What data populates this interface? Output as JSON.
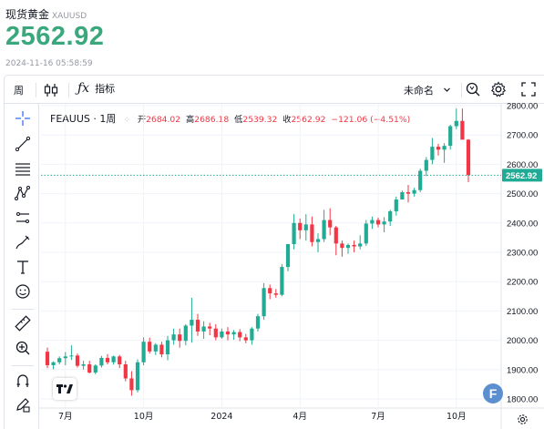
{
  "header": {
    "title": "现货黄金",
    "symbol": "XAUUSD",
    "price": "2562.92",
    "timestamp": "2024-11-16 05:58:59"
  },
  "toolbar": {
    "interval": "周",
    "indicators_label": "指标",
    "layout_name": "未命名"
  },
  "legend": {
    "symbol": "FEAUUS · 1周",
    "open_label": "开",
    "open": "2684.02",
    "high_label": "高",
    "high": "2686.18",
    "low_label": "低",
    "low": "2539.32",
    "close_label": "收",
    "close": "2562.92",
    "change": "−121.06 (−4.51%)"
  },
  "colors": {
    "up": "#22ab94",
    "down": "#f23645",
    "price_tag": "#22ab94"
  },
  "chart_data": {
    "type": "candlestick",
    "y_ticks": [
      1800,
      1900,
      2000,
      2100,
      2200,
      2300,
      2400,
      2500,
      2600,
      2700,
      2800
    ],
    "y_tick_labels": [
      "1800.00",
      "1900.00",
      "2000.00",
      "2100.00",
      "2200.00",
      "2300.00",
      "2400.00",
      "2500.00",
      "2600.00",
      "2700.00",
      "2800.00"
    ],
    "ylim": [
      1790,
      2830
    ],
    "x_labels": [
      "7月",
      "10月",
      "2024",
      "4月",
      "7月",
      "10月"
    ],
    "x_label_weeks": [
      3,
      16,
      29,
      42,
      55,
      68
    ],
    "last_price_label": "2562.92",
    "last_price": 2562.92,
    "grid": true,
    "candles": [
      [
        1961,
        1975,
        1905,
        1915
      ],
      [
        1915,
        1928,
        1901,
        1925
      ],
      [
        1925,
        1945,
        1918,
        1939
      ],
      [
        1939,
        1960,
        1915,
        1945
      ],
      [
        1945,
        1983,
        1933,
        1948
      ],
      [
        1948,
        1955,
        1907,
        1913
      ],
      [
        1913,
        1930,
        1900,
        1918
      ],
      [
        1918,
        1930,
        1887,
        1890
      ],
      [
        1890,
        1918,
        1884,
        1914
      ],
      [
        1914,
        1947,
        1907,
        1940
      ],
      [
        1940,
        1953,
        1918,
        1925
      ],
      [
        1925,
        1948,
        1917,
        1945
      ],
      [
        1945,
        1950,
        1905,
        1918
      ],
      [
        1918,
        1930,
        1860,
        1870
      ],
      [
        1870,
        1895,
        1811,
        1830
      ],
      [
        1830,
        1935,
        1822,
        1925
      ],
      [
        1925,
        2010,
        1915,
        1995
      ],
      [
        1995,
        2009,
        1955,
        1962
      ],
      [
        1962,
        1990,
        1950,
        1985
      ],
      [
        1985,
        1995,
        1942,
        1952
      ],
      [
        1952,
        2015,
        1932,
        2000
      ],
      [
        2000,
        2040,
        1985,
        2020
      ],
      [
        2020,
        2040,
        1975,
        1998
      ],
      [
        1998,
        2055,
        1983,
        2050
      ],
      [
        2050,
        2145,
        1992,
        2070
      ],
      [
        2070,
        2090,
        2015,
        2030
      ],
      [
        2030,
        2065,
        2005,
        2047
      ],
      [
        2047,
        2060,
        2017,
        2040
      ],
      [
        2040,
        2055,
        2000,
        2010
      ],
      [
        2010,
        2040,
        2005,
        2030
      ],
      [
        2030,
        2045,
        2000,
        2020
      ],
      [
        2020,
        2035,
        2002,
        2028
      ],
      [
        2028,
        2038,
        1997,
        2010
      ],
      [
        2010,
        2022,
        1990,
        2000
      ],
      [
        2000,
        2045,
        1985,
        2040
      ],
      [
        2040,
        2090,
        2030,
        2082
      ],
      [
        2082,
        2195,
        2070,
        2178
      ],
      [
        2178,
        2190,
        2140,
        2160
      ],
      [
        2160,
        2175,
        2145,
        2155
      ],
      [
        2155,
        2260,
        2150,
        2250
      ],
      [
        2250,
        2320,
        2235,
        2328
      ],
      [
        2328,
        2430,
        2310,
        2400
      ],
      [
        2400,
        2415,
        2345,
        2375
      ],
      [
        2375,
        2430,
        2340,
        2395
      ],
      [
        2395,
        2422,
        2320,
        2335
      ],
      [
        2335,
        2365,
        2300,
        2345
      ],
      [
        2345,
        2445,
        2335,
        2410
      ],
      [
        2410,
        2450,
        2358,
        2385
      ],
      [
        2385,
        2390,
        2290,
        2330
      ],
      [
        2330,
        2340,
        2285,
        2315
      ],
      [
        2315,
        2330,
        2295,
        2325
      ],
      [
        2325,
        2340,
        2300,
        2320
      ],
      [
        2320,
        2358,
        2310,
        2330
      ],
      [
        2330,
        2410,
        2322,
        2398
      ],
      [
        2398,
        2422,
        2380,
        2410
      ],
      [
        2410,
        2418,
        2385,
        2395
      ],
      [
        2395,
        2420,
        2368,
        2405
      ],
      [
        2405,
        2445,
        2390,
        2440
      ],
      [
        2440,
        2490,
        2425,
        2480
      ],
      [
        2480,
        2510,
        2490,
        2505
      ],
      [
        2505,
        2530,
        2470,
        2500
      ],
      [
        2500,
        2520,
        2490,
        2512
      ],
      [
        2512,
        2585,
        2505,
        2578
      ],
      [
        2578,
        2625,
        2560,
        2615
      ],
      [
        2615,
        2690,
        2600,
        2660
      ],
      [
        2660,
        2670,
        2630,
        2650
      ],
      [
        2650,
        2672,
        2605,
        2663
      ],
      [
        2663,
        2735,
        2650,
        2730
      ],
      [
        2730,
        2790,
        2720,
        2748
      ],
      [
        2748,
        2790,
        2690,
        2684
      ],
      [
        2684,
        2686,
        2539,
        2562.92
      ]
    ]
  }
}
